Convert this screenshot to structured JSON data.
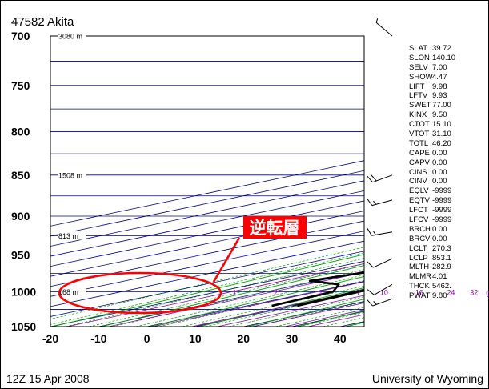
{
  "header": {
    "station": "47582 Akita"
  },
  "footer": {
    "time": "12Z 15 Apr 2008",
    "source": "University of Wyoming"
  },
  "annotation": {
    "label": "逆転層",
    "color": "#ff0000"
  },
  "stats": [
    {
      "key": "SLAT",
      "value": "39.72"
    },
    {
      "key": "SLON",
      "value": "140.10"
    },
    {
      "key": "SELV",
      "value": "7.00"
    },
    {
      "key": "SHOW",
      "value": "4.47"
    },
    {
      "key": "LIFT",
      "value": "9.98"
    },
    {
      "key": "LFTV",
      "value": "9.93"
    },
    {
      "key": "SWET",
      "value": "77.00"
    },
    {
      "key": "KINX",
      "value": "9.50"
    },
    {
      "key": "CTOT",
      "value": "15.10"
    },
    {
      "key": "VTOT",
      "value": "31.10"
    },
    {
      "key": "TOTL",
      "value": "46.20"
    },
    {
      "key": "CAPE",
      "value": "0.00"
    },
    {
      "key": "CAPV",
      "value": "0.00"
    },
    {
      "key": "CINS",
      "value": "0.00"
    },
    {
      "key": "CINV",
      "value": "0.00"
    },
    {
      "key": "EQLV",
      "value": "-9999"
    },
    {
      "key": "EQTV",
      "value": "-9999"
    },
    {
      "key": "LFCT",
      "value": "-9999"
    },
    {
      "key": "LFCV",
      "value": "-9999"
    },
    {
      "key": "BRCH",
      "value": "0.00"
    },
    {
      "key": "BRCV",
      "value": "0.00"
    },
    {
      "key": "LCLT",
      "value": "270.3"
    },
    {
      "key": "LCLP",
      "value": "853.1"
    },
    {
      "key": "MLTH",
      "value": "282.9"
    },
    {
      "key": "MLMR",
      "value": "4.01"
    },
    {
      "key": "THCK",
      "value": "5462."
    },
    {
      "key": "PWAT",
      "value": "9.80"
    }
  ],
  "chart_data": {
    "type": "line",
    "title": "47582 Akita",
    "xlim": [
      -20,
      45
    ],
    "ylim": [
      1050,
      700
    ],
    "yscale": "log",
    "x_ticks": [
      "-20",
      "-10",
      "0",
      "10",
      "20",
      "30",
      "40"
    ],
    "y_ticks": [
      "700",
      "750",
      "800",
      "850",
      "900",
      "950",
      "1000",
      "1050"
    ],
    "height_labels": [
      {
        "text": "3080 m",
        "p": 700
      },
      {
        "text": "1508 m",
        "p": 850
      },
      {
        "text": "813 m",
        "p": 925
      },
      {
        "text": "168 m",
        "p": 1000
      }
    ],
    "mixing_ratio_labels": [
      "1",
      "2",
      "4",
      "7",
      "10",
      "16",
      "24",
      "32",
      "g/kg"
    ],
    "grid": true,
    "series": [
      {
        "role": "temperature",
        "color": "#000000",
        "points": [
          {
            "p": 1020,
            "t": 10.5
          },
          {
            "p": 1000,
            "t": 9.2
          },
          {
            "p": 996,
            "t": 8.6
          },
          {
            "p": 987,
            "t": 9.9
          },
          {
            "p": 960,
            "t": 8.2
          },
          {
            "p": 940,
            "t": 7.5
          },
          {
            "p": 915,
            "t": 7.5
          },
          {
            "p": 860,
            "t": 8.4
          },
          {
            "p": 830,
            "t": 7.9
          },
          {
            "p": 775,
            "t": 4.2
          },
          {
            "p": 700,
            "t": -3.0
          }
        ]
      },
      {
        "role": "dewpoint",
        "color": "#000000",
        "points": [
          {
            "p": 1020,
            "t": 5.2
          },
          {
            "p": 1000,
            "t": 3.8
          },
          {
            "p": 990,
            "t": -2.2
          },
          {
            "p": 985,
            "t": -11.8
          },
          {
            "p": 958,
            "t": -4.5
          },
          {
            "p": 946,
            "t": -6.8
          },
          {
            "p": 932,
            "t": -12.0
          },
          {
            "p": 915,
            "t": -10.0
          },
          {
            "p": 890,
            "t": -7.4
          },
          {
            "p": 800,
            "t": -11.3
          },
          {
            "p": 700,
            "t": -16.5
          }
        ]
      }
    ],
    "winds": [
      {
        "p": 1010,
        "dir": 250,
        "spd": 15
      },
      {
        "p": 990,
        "dir": 240,
        "spd": 12
      },
      {
        "p": 955,
        "dir": 245,
        "spd": 10
      },
      {
        "p": 920,
        "dir": 260,
        "spd": 15
      },
      {
        "p": 880,
        "dir": 255,
        "spd": 15
      },
      {
        "p": 850,
        "dir": 250,
        "spd": 20
      },
      {
        "p": 700,
        "dir": 310,
        "spd": 5
      }
    ]
  }
}
